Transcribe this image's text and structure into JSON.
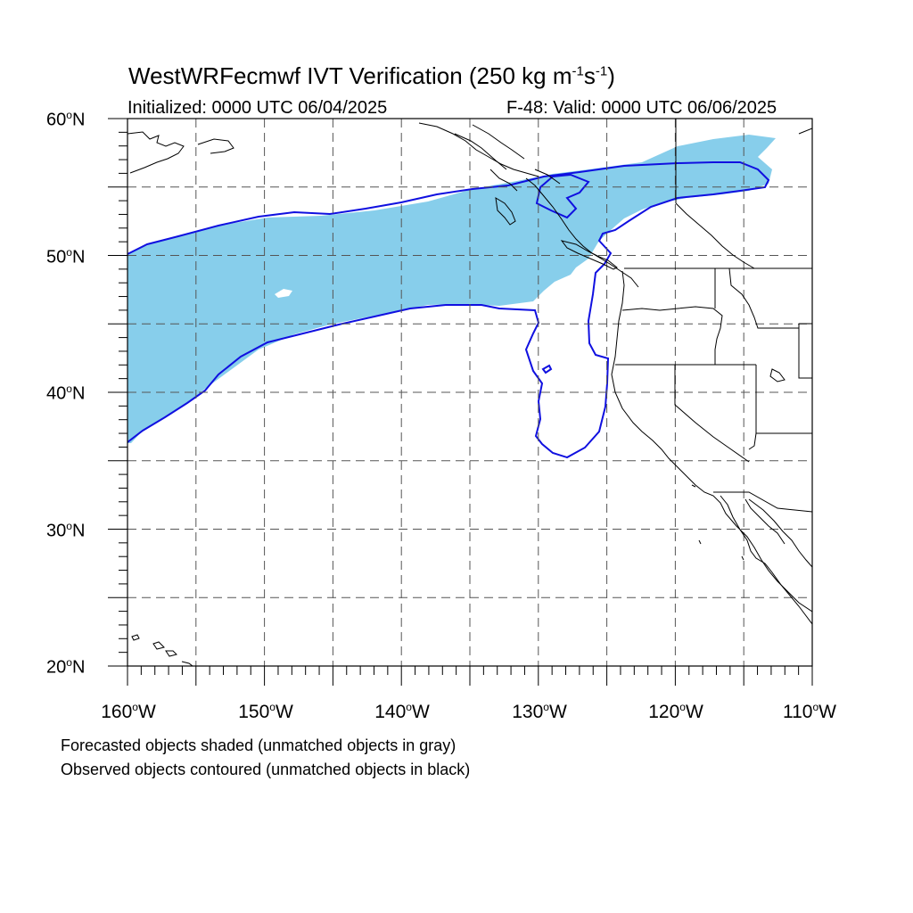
{
  "title": {
    "prefix": "WestWRFecmwf IVT Verification (250 kg m",
    "exp1": "-1",
    "mid": "s",
    "exp2": "-1",
    "suffix": ")"
  },
  "initialized": "Initialized: 0000 UTC 06/04/2025",
  "valid": "F-48: Valid: 0000 UTC 06/06/2025",
  "lat_labels": [
    {
      "deg": "60",
      "hemi": "N"
    },
    {
      "deg": "50",
      "hemi": "N"
    },
    {
      "deg": "40",
      "hemi": "N"
    },
    {
      "deg": "30",
      "hemi": "N"
    },
    {
      "deg": "20",
      "hemi": "N"
    }
  ],
  "lon_labels": [
    {
      "deg": "160",
      "hemi": "W"
    },
    {
      "deg": "150",
      "hemi": "W"
    },
    {
      "deg": "140",
      "hemi": "W"
    },
    {
      "deg": "130",
      "hemi": "W"
    },
    {
      "deg": "120",
      "hemi": "W"
    },
    {
      "deg": "110",
      "hemi": "W"
    }
  ],
  "captions": [
    "Forecasted objects shaded (unmatched objects in gray)",
    "Observed objects contoured (unmatched objects in black)"
  ],
  "map": {
    "lon_range": [
      -160,
      -110
    ],
    "lat_range": [
      20,
      60
    ],
    "grid_lons": [
      -155,
      -150,
      -145,
      -140,
      -135,
      -130,
      -125,
      -120,
      -115
    ],
    "grid_lats": [
      25,
      30,
      35,
      40,
      45,
      50,
      55
    ],
    "forecast_fill_color": "#87ceeb",
    "observed_contour_color": "#1010e0"
  }
}
